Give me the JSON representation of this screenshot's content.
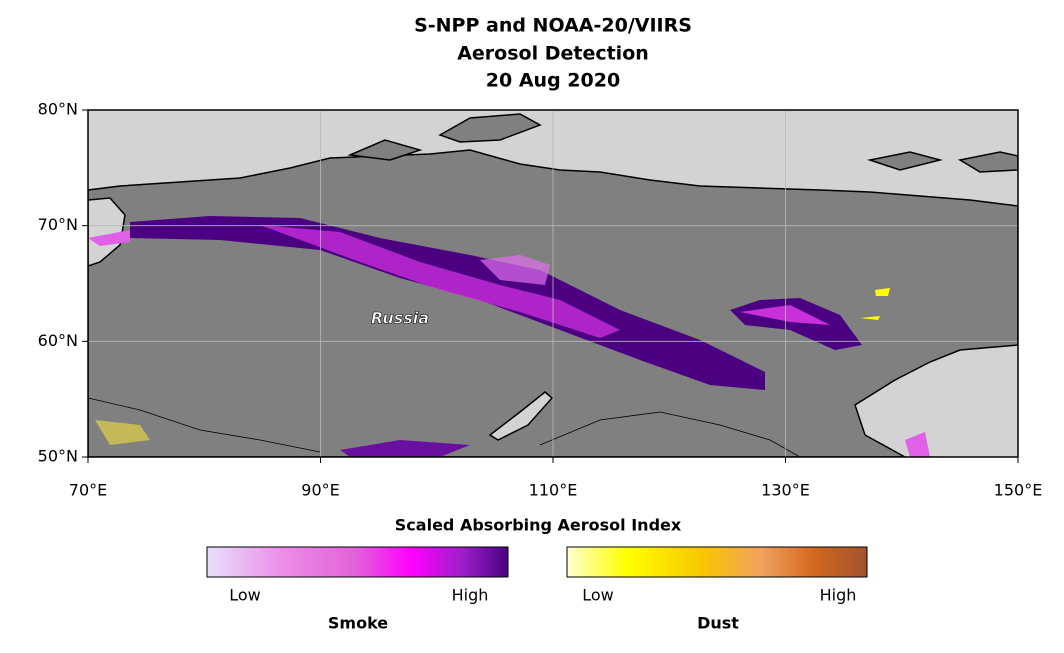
{
  "title": [
    "S-NPP and NOAA-20/VIIRS",
    "Aerosol Detection",
    "20 Aug 2020"
  ],
  "map": {
    "xlim": [
      70,
      150
    ],
    "ylim": [
      50,
      80
    ],
    "xticks": [
      {
        "value": 70,
        "label": "70°E"
      },
      {
        "value": 90,
        "label": "90°E"
      },
      {
        "value": 110,
        "label": "110°E"
      },
      {
        "value": 130,
        "label": "130°E"
      },
      {
        "value": 150,
        "label": "150°E"
      }
    ],
    "yticks": [
      {
        "value": 50,
        "label": "50°N"
      },
      {
        "value": 60,
        "label": "60°N"
      },
      {
        "value": 70,
        "label": "70°N"
      },
      {
        "value": 80,
        "label": "80°N"
      }
    ],
    "grid": true,
    "place_label": "Russia"
  },
  "colorbar_title": "Scaled Absorbing Aerosol Index",
  "colorbars": [
    {
      "name": "Smoke",
      "low": "Low",
      "high": "High"
    },
    {
      "name": "Dust",
      "low": "Low",
      "high": "High"
    }
  ]
}
